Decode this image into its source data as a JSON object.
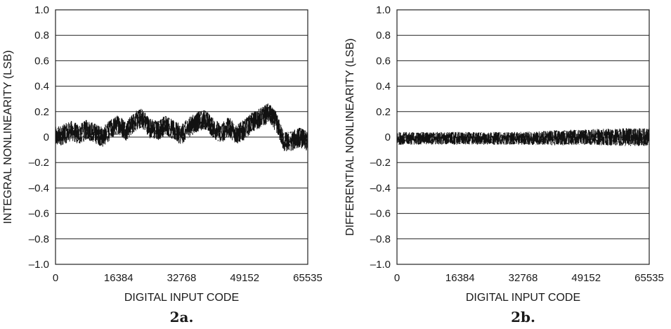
{
  "chart_data": [
    {
      "type": "line",
      "caption": "2a.",
      "xlabel": "DIGITAL INPUT CODE",
      "ylabel": "INTEGRAL NONLINEARITY (LSB)",
      "xlim": [
        0,
        65535
      ],
      "ylim": [
        -1.0,
        1.0
      ],
      "x_ticks": [
        "0",
        "16384",
        "32768",
        "49152",
        "65535"
      ],
      "y_ticks": [
        "1.0",
        "0.8",
        "0.6",
        "0.4",
        "0.2",
        "0",
        "–0.2",
        "–0.4",
        "–0.6",
        "–0.8",
        "–1.0"
      ],
      "grid": "horizontal",
      "series": [
        {
          "x": [
            0,
            2048,
            4096,
            6144,
            8192,
            10240,
            12288,
            14336,
            16384,
            18432,
            20480,
            22528,
            24576,
            26624,
            28672,
            30720,
            32768,
            34816,
            36864,
            38912,
            40960,
            43008,
            45056,
            47104,
            49152,
            51200,
            53248,
            55296,
            57344,
            59392,
            61440,
            63488,
            65535
          ],
          "y": [
            0.0,
            0.02,
            0.05,
            0.02,
            0.06,
            0.03,
            0.0,
            0.06,
            0.1,
            0.05,
            0.12,
            0.15,
            0.07,
            0.05,
            0.1,
            0.05,
            0.02,
            0.08,
            0.12,
            0.14,
            0.07,
            0.03,
            0.08,
            0.02,
            0.06,
            0.12,
            0.15,
            0.19,
            0.12,
            -0.04,
            -0.03,
            0.0,
            -0.04
          ],
          "spread": [
            0.08,
            0.08,
            0.08,
            0.08,
            0.08,
            0.08,
            0.08,
            0.08,
            0.08,
            0.08,
            0.08,
            0.08,
            0.08,
            0.08,
            0.08,
            0.08,
            0.08,
            0.08,
            0.08,
            0.08,
            0.08,
            0.08,
            0.08,
            0.08,
            0.08,
            0.08,
            0.08,
            0.08,
            0.08,
            0.08,
            0.08,
            0.08,
            0.08
          ]
        }
      ]
    },
    {
      "type": "line",
      "caption": "2b.",
      "xlabel": "DIGITAL INPUT CODE",
      "ylabel": "DIFFERENTIAL NONLINEARITY (LSB)",
      "xlim": [
        0,
        65535
      ],
      "ylim": [
        -1.0,
        1.0
      ],
      "x_ticks": [
        "0",
        "16384",
        "32768",
        "49152",
        "65535"
      ],
      "y_ticks": [
        "1.0",
        "0.8",
        "0.6",
        "0.4",
        "0.2",
        "0",
        "–0.2",
        "–0.4",
        "–0.6",
        "–0.8",
        "–1.0"
      ],
      "grid": "horizontal",
      "series": [
        {
          "x": [
            0,
            8192,
            16384,
            24576,
            32768,
            40960,
            49152,
            57344,
            65535
          ],
          "y": [
            -0.01,
            -0.01,
            -0.01,
            -0.01,
            -0.01,
            -0.005,
            0.0,
            0.0,
            0.0
          ],
          "spread": [
            0.05,
            0.05,
            0.05,
            0.05,
            0.05,
            0.06,
            0.06,
            0.07,
            0.07
          ]
        }
      ]
    }
  ]
}
